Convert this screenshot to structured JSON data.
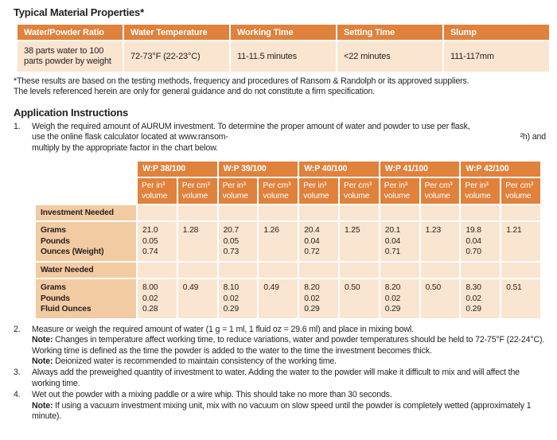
{
  "colors": {
    "header_orange": "#e0813c",
    "label_peach": "#f3cba3",
    "cell_pale": "#f9e5d0"
  },
  "page": {
    "title": "Typical Material Properties*",
    "footnote": "*These results are based on the testing methods, frequency and procedures of Ransom & Randolph or its approved suppliers.\nThe levels referenced herein are only for general guidance and do not constitute a firm specification.",
    "section2_title": "Application Instructions"
  },
  "properties_table": {
    "headers": [
      "Water/Powder Ratio",
      "Water Temperature",
      "Working Time",
      "Setting Time",
      "Slump"
    ],
    "row": [
      "38 parts water to 100\nparts powder by weight",
      "72-73°F (22-23°C)",
      "11-11.5 minutes",
      "<22 minutes",
      "111-117mm"
    ]
  },
  "ratio_table": {
    "groups": [
      "W:P 38/100",
      "W:P 39/100",
      "W:P 40/100",
      "W:P 41/100",
      "W:P 42/100"
    ],
    "subheaders": [
      "Per in³\nvolume",
      "Per cm³\nvolume",
      "Per in³\nvolume",
      "Per cm³\nvolume",
      "Per in³\nvolume",
      "Per cm³\nvolume",
      "Per in³\nvolume",
      "Per cm³\nvolume",
      "Per in³\nvolume",
      "Per cm³\nvolume"
    ],
    "investment": {
      "section_label": "Investment Needed",
      "row_label": "Grams\nPounds\nOunces (Weight)",
      "values": [
        "21.0\n0.05\n0.74",
        "1.28",
        "20.7\n0.05\n0.73",
        "1.26",
        "20.4\n0.04\n0.72",
        "1.25",
        "20.1\n0.04\n0.71",
        "1.23",
        "19.8\n0.04\n0.70",
        "1.21"
      ]
    },
    "water": {
      "section_label": "Water Needed",
      "row_label": "Grams\nPounds\nFluid Ounces",
      "values": [
        "8.00\n0.02\n0.28",
        "0.49",
        "8.10\n0.02\n0.29",
        "0.49",
        "8.20\n0.02\n0.29",
        "0.50",
        "8.20\n0.02\n0.29",
        "0.50",
        "8.30\n0.02\n0.29",
        "0.51"
      ]
    }
  },
  "instructions": {
    "item1": {
      "number": "1.",
      "line1": "Weigh the required amount of AURUM investment. To determine the proper amount of water and powder to use per flask,",
      "line2_left": "use the online flask calculator located at www.ransom-",
      "line2_right": "²h) and",
      "line3": "multiply by the appropriate factor in the chart below."
    },
    "item2": {
      "number": "2.",
      "text": "Measure or weigh the required amount of water (1 g = 1 ml, 1 fluid oz = 29.6 ml) and place in mixing bowl.",
      "note1_label": "Note:",
      "note1_text": " Changes in temperature affect working time, to reduce variations, water and powder temperatures should be held to 72-75°F (22-24°C). Working time is defined as the time the powder is added to the water to the time the investment becomes thick.",
      "note2_label": "Note:",
      "note2_text": " Deionized water is recommended to maintain consistency of the working time."
    },
    "item3": {
      "number": "3.",
      "text": "Always add the preweighed quantity of investment to water. Adding the water to the powder will make it difficult to mix and will affect the working time."
    },
    "item4": {
      "number": "4.",
      "text": "Wet out the powder with a mixing paddle or a wire whip. This should take no more than 30 seconds.",
      "note_label": "Note:",
      "note_text": " If using a vacuum investment mixing unit, mix with no vacuum on slow speed until the powder is completely wetted (approximately 1 minute)."
    }
  }
}
